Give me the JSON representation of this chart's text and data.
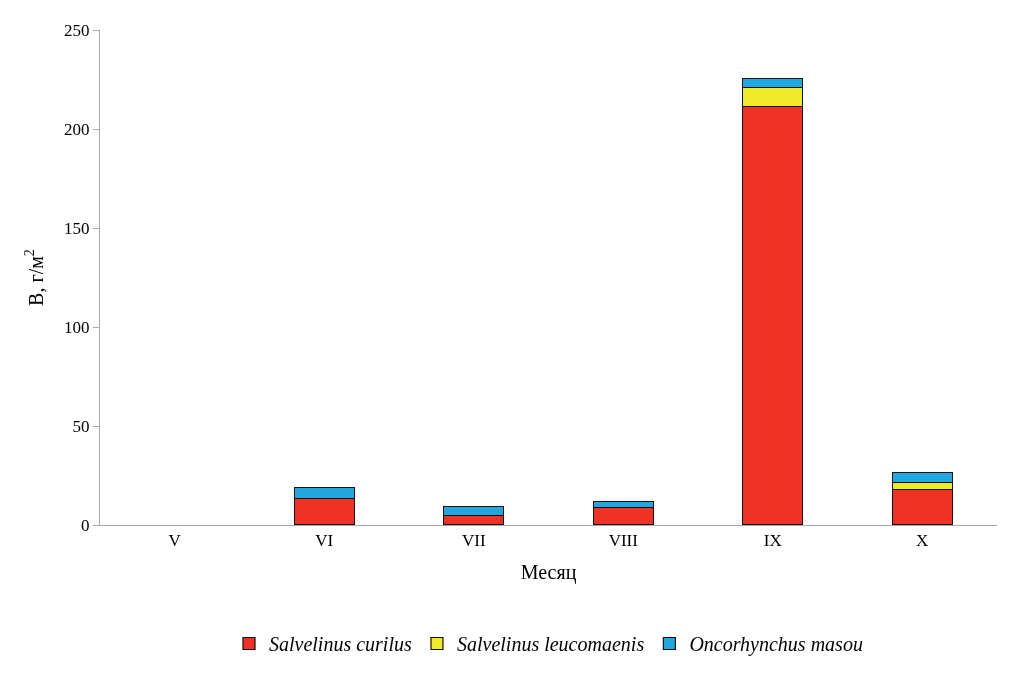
{
  "chart_data": {
    "type": "bar",
    "stacked": true,
    "xlabel": "Месяц",
    "ylabel": "В, г/м$^{2}$",
    "categories": [
      "V",
      "VI",
      "VII",
      "VIII",
      "IX",
      "X"
    ],
    "series": [
      {
        "name": "Salvelinus curilus",
        "color": "#ee3224",
        "values": [
          null,
          13.5,
          5,
          9,
          211.5,
          18
        ]
      },
      {
        "name": "Salvelinus leucomaenis",
        "color": "#eeea2a",
        "values": [
          null,
          null,
          null,
          null,
          9.5,
          3.5
        ]
      },
      {
        "name": "Oncorhynchus masou",
        "color": "#22a8e0",
        "values": [
          null,
          5.5,
          4.5,
          3,
          4.5,
          5
        ]
      }
    ],
    "ylim": [
      0,
      250
    ],
    "yticks": [
      0,
      50,
      100,
      150,
      200,
      250
    ],
    "legend": "bottom"
  }
}
